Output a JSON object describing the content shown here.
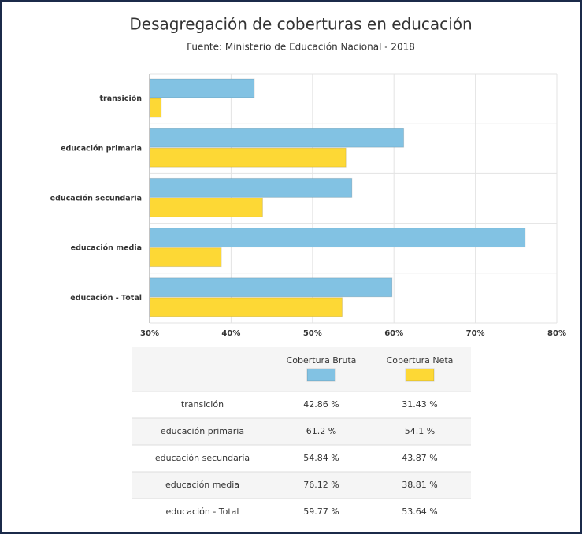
{
  "chart_data": {
    "type": "bar",
    "orientation": "horizontal",
    "title": "Desagregación de coberturas en educación",
    "subtitle": "Fuente: Ministerio de Educación Nacional - 2018",
    "categories": [
      "transición",
      "educación primaria",
      "educación secundaria",
      "educación media",
      "educación - Total"
    ],
    "series": [
      {
        "name": "Cobertura Bruta",
        "color": "#82c2e3",
        "values": [
          42.86,
          61.2,
          54.84,
          76.12,
          59.77
        ],
        "value_labels": [
          "42.86 %",
          "61.2 %",
          "54.84 %",
          "76.12 %",
          "59.77 %"
        ]
      },
      {
        "name": "Cobertura Neta",
        "color": "#fdd835",
        "values": [
          31.43,
          54.1,
          43.87,
          38.81,
          53.64
        ],
        "value_labels": [
          "31.43 %",
          "54.1 %",
          "43.87 %",
          "38.81 %",
          "53.64 %"
        ]
      }
    ],
    "xlim": [
      30,
      80
    ],
    "xticks": [
      {
        "value": 30,
        "label": "30%"
      },
      {
        "value": 40,
        "label": "40%"
      },
      {
        "value": 50,
        "label": "50%"
      },
      {
        "value": 60,
        "label": "60%"
      },
      {
        "value": 70,
        "label": "70%"
      },
      {
        "value": 80,
        "label": "80%"
      }
    ],
    "grid": true
  }
}
